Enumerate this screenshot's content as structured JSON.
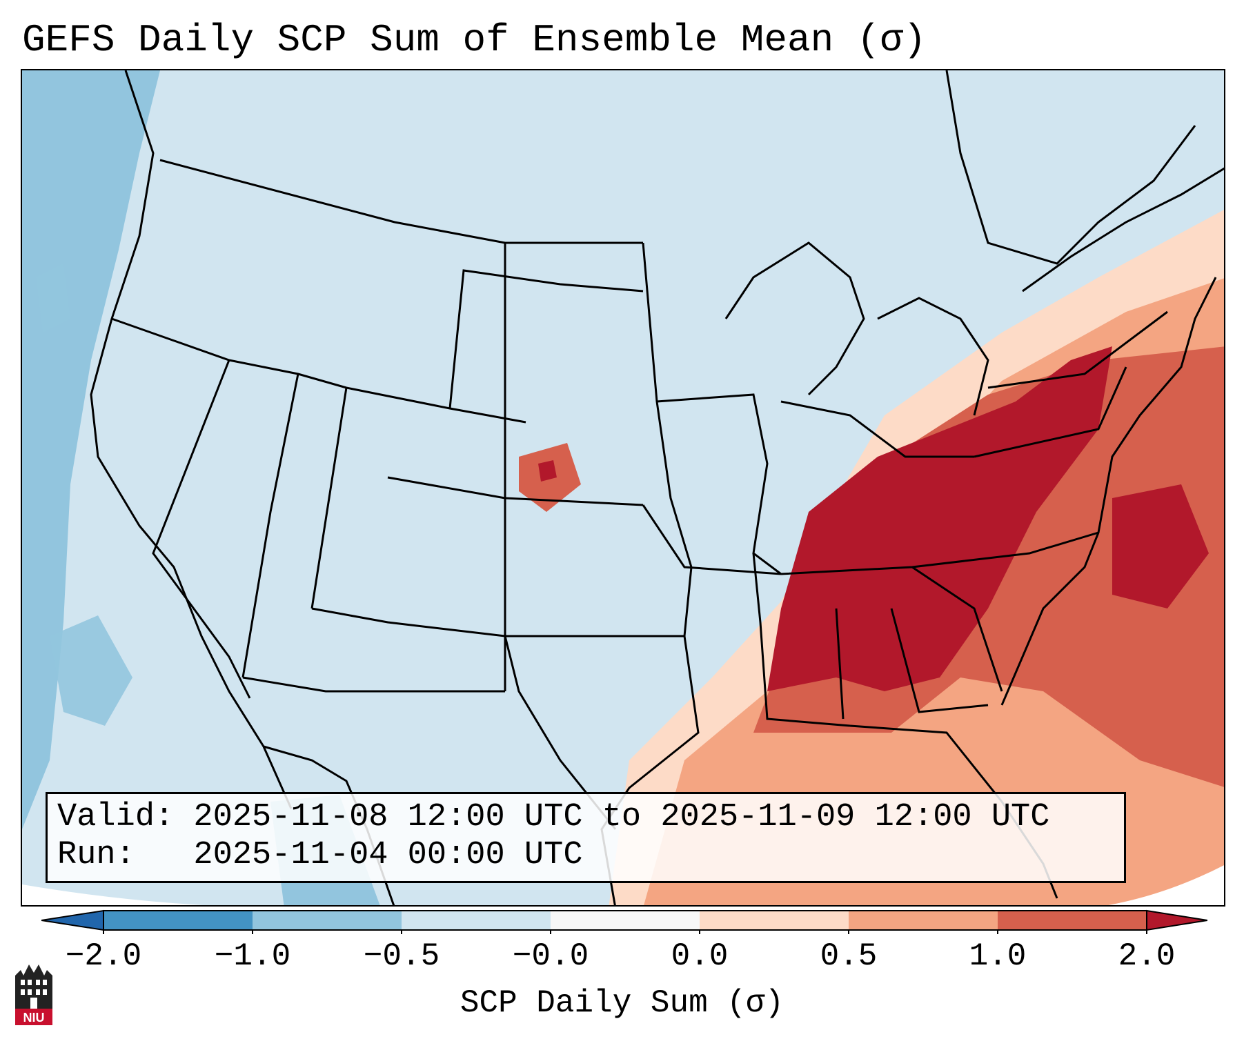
{
  "title": "GEFS Daily SCP Sum of Ensemble Mean (σ)",
  "info": {
    "valid_line": "Valid: 2025-11-08 12:00 UTC to 2025-11-09 12:00 UTC",
    "run_line": "Run:   2025-11-04 00:00 UTC"
  },
  "colorbar": {
    "label": "SCP Daily Sum (σ)",
    "ticks": [
      "−2.0",
      "−1.0",
      "−0.5",
      "−0.0",
      "0.0",
      "0.5",
      "1.0",
      "2.0"
    ],
    "colors": [
      "#4393c3",
      "#92c5de",
      "#d1e5f0",
      "#f7f7f7",
      "#fddbc7",
      "#f4a582",
      "#d6604d",
      "#b2182b"
    ],
    "extend_low_color": "#2166ac",
    "extend_high_color": "#b2182b"
  },
  "logo": {
    "text": "NIU"
  },
  "map": {
    "base_color": "#d1e5f0",
    "regions": [
      {
        "name": "Southeast US strong signal",
        "category": "2.0"
      },
      {
        "name": "Gulf of Mexico moderate signal",
        "category": "0.5"
      },
      {
        "name": "Northeast US moderate-high signal",
        "category": "1.0"
      },
      {
        "name": "Pacific coast negative signal",
        "category": "-1.0"
      }
    ]
  }
}
